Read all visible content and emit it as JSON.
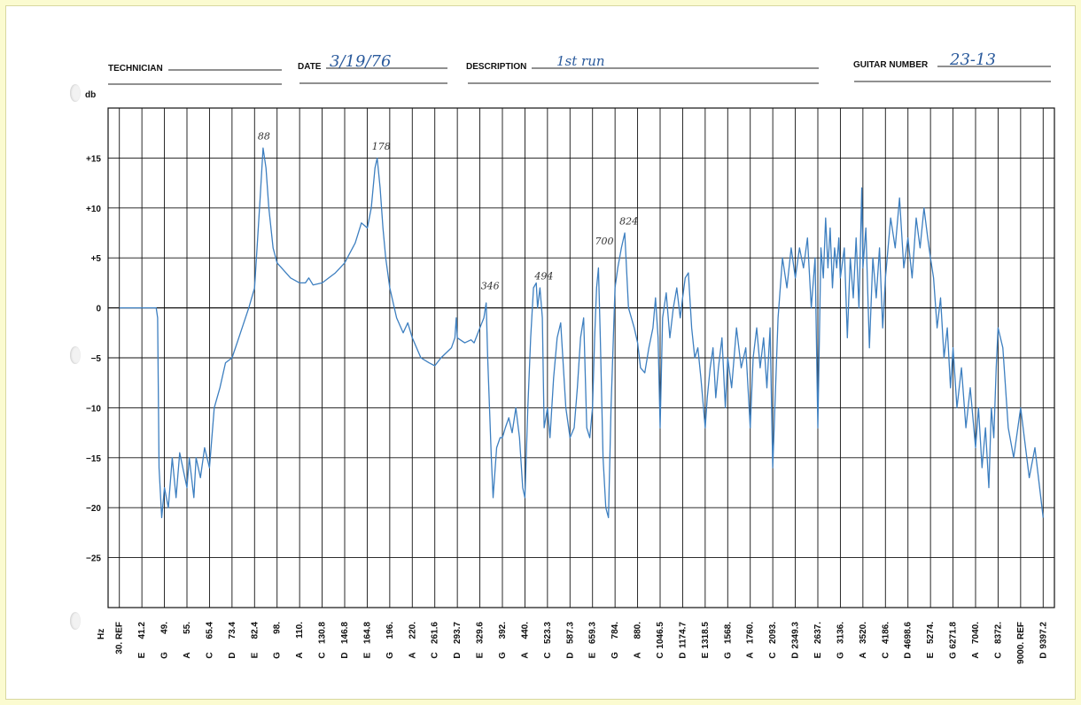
{
  "header": {
    "technician_label": "TECHNICIAN",
    "technician_value": "",
    "date_label": "DATE",
    "date_value": "3/19/76",
    "description_label": "DESCRIPTION",
    "description_value": "1st run",
    "guitar_label": "GUITAR NUMBER",
    "guitar_value": "23-13"
  },
  "colors": {
    "trace": "#3d7fc0",
    "grid": "#111111",
    "paper": "#ffffff",
    "background": "#fbfbd0"
  },
  "chart_data": {
    "type": "line",
    "ylabel": "db",
    "xlabel": "Hz",
    "ylim": [
      -30,
      20
    ],
    "grid": true,
    "y_ticks": [
      {
        "v": 15,
        "label": "+15"
      },
      {
        "v": 10,
        "label": "+10"
      },
      {
        "v": 5,
        "label": "+5"
      },
      {
        "v": 0,
        "label": "0"
      },
      {
        "v": -5,
        "label": "−5"
      },
      {
        "v": -10,
        "label": "−10"
      },
      {
        "v": -15,
        "label": "−15"
      },
      {
        "v": -20,
        "label": "−20"
      },
      {
        "v": -25,
        "label": "−25"
      }
    ],
    "x_ticks": [
      {
        "freq": "30. REF",
        "note": ""
      },
      {
        "freq": "41.2",
        "note": "E"
      },
      {
        "freq": "49.",
        "note": "G"
      },
      {
        "freq": "55.",
        "note": "A"
      },
      {
        "freq": "65.4",
        "note": "C"
      },
      {
        "freq": "73.4",
        "note": "D"
      },
      {
        "freq": "82.4",
        "note": "E"
      },
      {
        "freq": "98.",
        "note": "G"
      },
      {
        "freq": "110.",
        "note": "A"
      },
      {
        "freq": "130.8",
        "note": "C"
      },
      {
        "freq": "146.8",
        "note": "D"
      },
      {
        "freq": "164.8",
        "note": "E"
      },
      {
        "freq": "196.",
        "note": "G"
      },
      {
        "freq": "220.",
        "note": "A"
      },
      {
        "freq": "261.6",
        "note": "C"
      },
      {
        "freq": "293.7",
        "note": "D"
      },
      {
        "freq": "329.6",
        "note": "E"
      },
      {
        "freq": "392.",
        "note": "G"
      },
      {
        "freq": "440.",
        "note": "A"
      },
      {
        "freq": "523.3",
        "note": "C"
      },
      {
        "freq": "587.3",
        "note": "D"
      },
      {
        "freq": "659.3",
        "note": "E"
      },
      {
        "freq": "784.",
        "note": "G"
      },
      {
        "freq": "880.",
        "note": "A"
      },
      {
        "freq": "1046.5",
        "note": "C"
      },
      {
        "freq": "1174.7",
        "note": "D"
      },
      {
        "freq": "1318.5",
        "note": "E"
      },
      {
        "freq": "1568.",
        "note": "G"
      },
      {
        "freq": "1760.",
        "note": "A"
      },
      {
        "freq": "2093.",
        "note": "C"
      },
      {
        "freq": "2349.3",
        "note": "D"
      },
      {
        "freq": "2637.",
        "note": "E"
      },
      {
        "freq": "3136.",
        "note": "G"
      },
      {
        "freq": "3520.",
        "note": "A"
      },
      {
        "freq": "4186.",
        "note": "C"
      },
      {
        "freq": "4698.6",
        "note": "D"
      },
      {
        "freq": "5274.",
        "note": "E"
      },
      {
        "freq": "6271.8",
        "note": "G"
      },
      {
        "freq": "7040.",
        "note": "A"
      },
      {
        "freq": "8372.",
        "note": "C"
      },
      {
        "freq": "9000. REF",
        "note": ""
      },
      {
        "freq": "9397.2",
        "note": "D"
      }
    ],
    "annotations": [
      {
        "text": "88",
        "f": 88,
        "db": 16.5
      },
      {
        "text": "178",
        "f": 178,
        "db": 15.5
      },
      {
        "text": "346",
        "f": 346,
        "db": 1.5
      },
      {
        "text": "494",
        "f": 494,
        "db": 2.5
      },
      {
        "text": "700",
        "f": 700,
        "db": 6
      },
      {
        "text": "824",
        "f": 824,
        "db": 8
      }
    ],
    "series": [
      {
        "points": [
          [
            30,
            0
          ],
          [
            35,
            0
          ],
          [
            40,
            0
          ],
          [
            44,
            0
          ],
          [
            46,
            0
          ],
          [
            46.5,
            -1
          ],
          [
            47,
            -16
          ],
          [
            48,
            -21
          ],
          [
            49,
            -18
          ],
          [
            50,
            -20
          ],
          [
            51,
            -15
          ],
          [
            52,
            -19
          ],
          [
            53,
            -14.5
          ],
          [
            55,
            -18
          ],
          [
            56,
            -15
          ],
          [
            58,
            -19
          ],
          [
            59,
            -15
          ],
          [
            61,
            -17
          ],
          [
            63,
            -14
          ],
          [
            65.4,
            -16
          ],
          [
            67,
            -10
          ],
          [
            69,
            -8
          ],
          [
            71,
            -5.5
          ],
          [
            73.4,
            -5
          ],
          [
            76,
            -3
          ],
          [
            80,
            0
          ],
          [
            82.4,
            2
          ],
          [
            84,
            6
          ],
          [
            86,
            11
          ],
          [
            88,
            16
          ],
          [
            90,
            14
          ],
          [
            92,
            10
          ],
          [
            95,
            6
          ],
          [
            98,
            4.5
          ],
          [
            105,
            3
          ],
          [
            110,
            2.5
          ],
          [
            115,
            2.5
          ],
          [
            118,
            3
          ],
          [
            122,
            2.3
          ],
          [
            130.8,
            2.5
          ],
          [
            140,
            3.5
          ],
          [
            146.8,
            4.5
          ],
          [
            155,
            6.5
          ],
          [
            160,
            8.5
          ],
          [
            165,
            8
          ],
          [
            170,
            10
          ],
          [
            175,
            14
          ],
          [
            178,
            15
          ],
          [
            182,
            12
          ],
          [
            186,
            8
          ],
          [
            190,
            5
          ],
          [
            196,
            2
          ],
          [
            203,
            -1
          ],
          [
            210,
            -2.5
          ],
          [
            215,
            -1.5
          ],
          [
            220,
            -3
          ],
          [
            235,
            -5
          ],
          [
            250,
            -5.5
          ],
          [
            261.6,
            -5.8
          ],
          [
            270,
            -5
          ],
          [
            285,
            -4
          ],
          [
            290,
            -3
          ],
          [
            292,
            -1
          ],
          [
            293.7,
            -3
          ],
          [
            305,
            -3.5
          ],
          [
            315,
            -3.2
          ],
          [
            320,
            -3.5
          ],
          [
            329.6,
            -2
          ],
          [
            340,
            -1
          ],
          [
            346,
            0.5
          ],
          [
            350,
            -5
          ],
          [
            360,
            -15
          ],
          [
            365,
            -19
          ],
          [
            375,
            -14
          ],
          [
            385,
            -13
          ],
          [
            392,
            -13
          ],
          [
            398,
            -12
          ],
          [
            405,
            -11
          ],
          [
            412,
            -12.5
          ],
          [
            420,
            -10
          ],
          [
            428,
            -13
          ],
          [
            435,
            -18
          ],
          [
            440,
            -19
          ],
          [
            450,
            -10
          ],
          [
            460,
            -3
          ],
          [
            470,
            2
          ],
          [
            480,
            2.5
          ],
          [
            485,
            0
          ],
          [
            494,
            2
          ],
          [
            503,
            -1
          ],
          [
            510,
            -12
          ],
          [
            523.3,
            -10
          ],
          [
            530,
            -13
          ],
          [
            540,
            -7
          ],
          [
            550,
            -3
          ],
          [
            560,
            -1.5
          ],
          [
            575,
            -10
          ],
          [
            587.3,
            -13
          ],
          [
            600,
            -12
          ],
          [
            610,
            -8
          ],
          [
            620,
            -3
          ],
          [
            630,
            -1
          ],
          [
            640,
            -12
          ],
          [
            650,
            -13
          ],
          [
            659.3,
            -10
          ],
          [
            670,
            -3
          ],
          [
            680,
            2
          ],
          [
            690,
            4
          ],
          [
            700,
            -3
          ],
          [
            715,
            -15
          ],
          [
            730,
            -20
          ],
          [
            745,
            -21
          ],
          [
            760,
            -10
          ],
          [
            784,
            2
          ],
          [
            795,
            4
          ],
          [
            810,
            6
          ],
          [
            824,
            7.5
          ],
          [
            840,
            0
          ],
          [
            865,
            -2
          ],
          [
            880,
            -3.5
          ],
          [
            900,
            -6
          ],
          [
            930,
            -6.5
          ],
          [
            960,
            -4
          ],
          [
            990,
            -2
          ],
          [
            1010,
            1
          ],
          [
            1030,
            -3
          ],
          [
            1046.5,
            -12
          ],
          [
            1060,
            -1
          ],
          [
            1080,
            1.5
          ],
          [
            1100,
            -3
          ],
          [
            1120,
            0
          ],
          [
            1140,
            2
          ],
          [
            1160,
            -1
          ],
          [
            1174.7,
            1
          ],
          [
            1190,
            3
          ],
          [
            1210,
            3.5
          ],
          [
            1230,
            -2
          ],
          [
            1250,
            -5
          ],
          [
            1270,
            -4
          ],
          [
            1290,
            -7
          ],
          [
            1318.5,
            -12
          ],
          [
            1340,
            -9
          ],
          [
            1370,
            -6
          ],
          [
            1400,
            -4
          ],
          [
            1430,
            -9
          ],
          [
            1460,
            -6
          ],
          [
            1500,
            -3
          ],
          [
            1540,
            -10
          ],
          [
            1568,
            -5
          ],
          [
            1600,
            -8
          ],
          [
            1640,
            -2
          ],
          [
            1680,
            -6
          ],
          [
            1720,
            -4
          ],
          [
            1760,
            -12
          ],
          [
            1800,
            -5
          ],
          [
            1850,
            -2
          ],
          [
            1900,
            -6
          ],
          [
            1950,
            -3
          ],
          [
            2000,
            -8
          ],
          [
            2050,
            -2
          ],
          [
            2093,
            -16
          ],
          [
            2150,
            -1
          ],
          [
            2200,
            5
          ],
          [
            2250,
            2
          ],
          [
            2300,
            6
          ],
          [
            2349.3,
            3
          ],
          [
            2400,
            6
          ],
          [
            2450,
            4
          ],
          [
            2500,
            7
          ],
          [
            2550,
            0
          ],
          [
            2600,
            5
          ],
          [
            2637,
            -12
          ],
          [
            2700,
            6
          ],
          [
            2750,
            3
          ],
          [
            2800,
            9
          ],
          [
            2850,
            4
          ],
          [
            2900,
            8
          ],
          [
            2950,
            2
          ],
          [
            3000,
            6
          ],
          [
            3050,
            4
          ],
          [
            3100,
            7
          ],
          [
            3136,
            3
          ],
          [
            3200,
            6
          ],
          [
            3250,
            -3
          ],
          [
            3300,
            5
          ],
          [
            3350,
            1
          ],
          [
            3400,
            7
          ],
          [
            3450,
            0
          ],
          [
            3500,
            12
          ],
          [
            3520,
            4
          ],
          [
            3600,
            8
          ],
          [
            3700,
            -4
          ],
          [
            3800,
            5
          ],
          [
            3900,
            1
          ],
          [
            4000,
            6
          ],
          [
            4100,
            -2
          ],
          [
            4186,
            3
          ],
          [
            4300,
            9
          ],
          [
            4400,
            6
          ],
          [
            4500,
            11
          ],
          [
            4600,
            4
          ],
          [
            4698.6,
            7
          ],
          [
            4800,
            3
          ],
          [
            4900,
            9
          ],
          [
            5000,
            6
          ],
          [
            5100,
            10
          ],
          [
            5200,
            7
          ],
          [
            5274,
            5
          ],
          [
            5400,
            3
          ],
          [
            5550,
            -2
          ],
          [
            5700,
            1
          ],
          [
            5850,
            -5
          ],
          [
            6000,
            -2
          ],
          [
            6150,
            -8
          ],
          [
            6271.8,
            -4
          ],
          [
            6400,
            -10
          ],
          [
            6550,
            -6
          ],
          [
            6700,
            -12
          ],
          [
            6850,
            -8
          ],
          [
            7040,
            -14
          ],
          [
            7200,
            -10
          ],
          [
            7400,
            -16
          ],
          [
            7600,
            -12
          ],
          [
            7800,
            -18
          ],
          [
            7950,
            -10
          ],
          [
            8100,
            -13
          ],
          [
            8250,
            -6
          ],
          [
            8372,
            -2
          ],
          [
            8500,
            -4
          ],
          [
            8650,
            -12
          ],
          [
            8800,
            -15
          ],
          [
            9000,
            -10
          ],
          [
            9150,
            -17
          ],
          [
            9250,
            -14
          ],
          [
            9397.2,
            -21
          ]
        ]
      }
    ]
  }
}
